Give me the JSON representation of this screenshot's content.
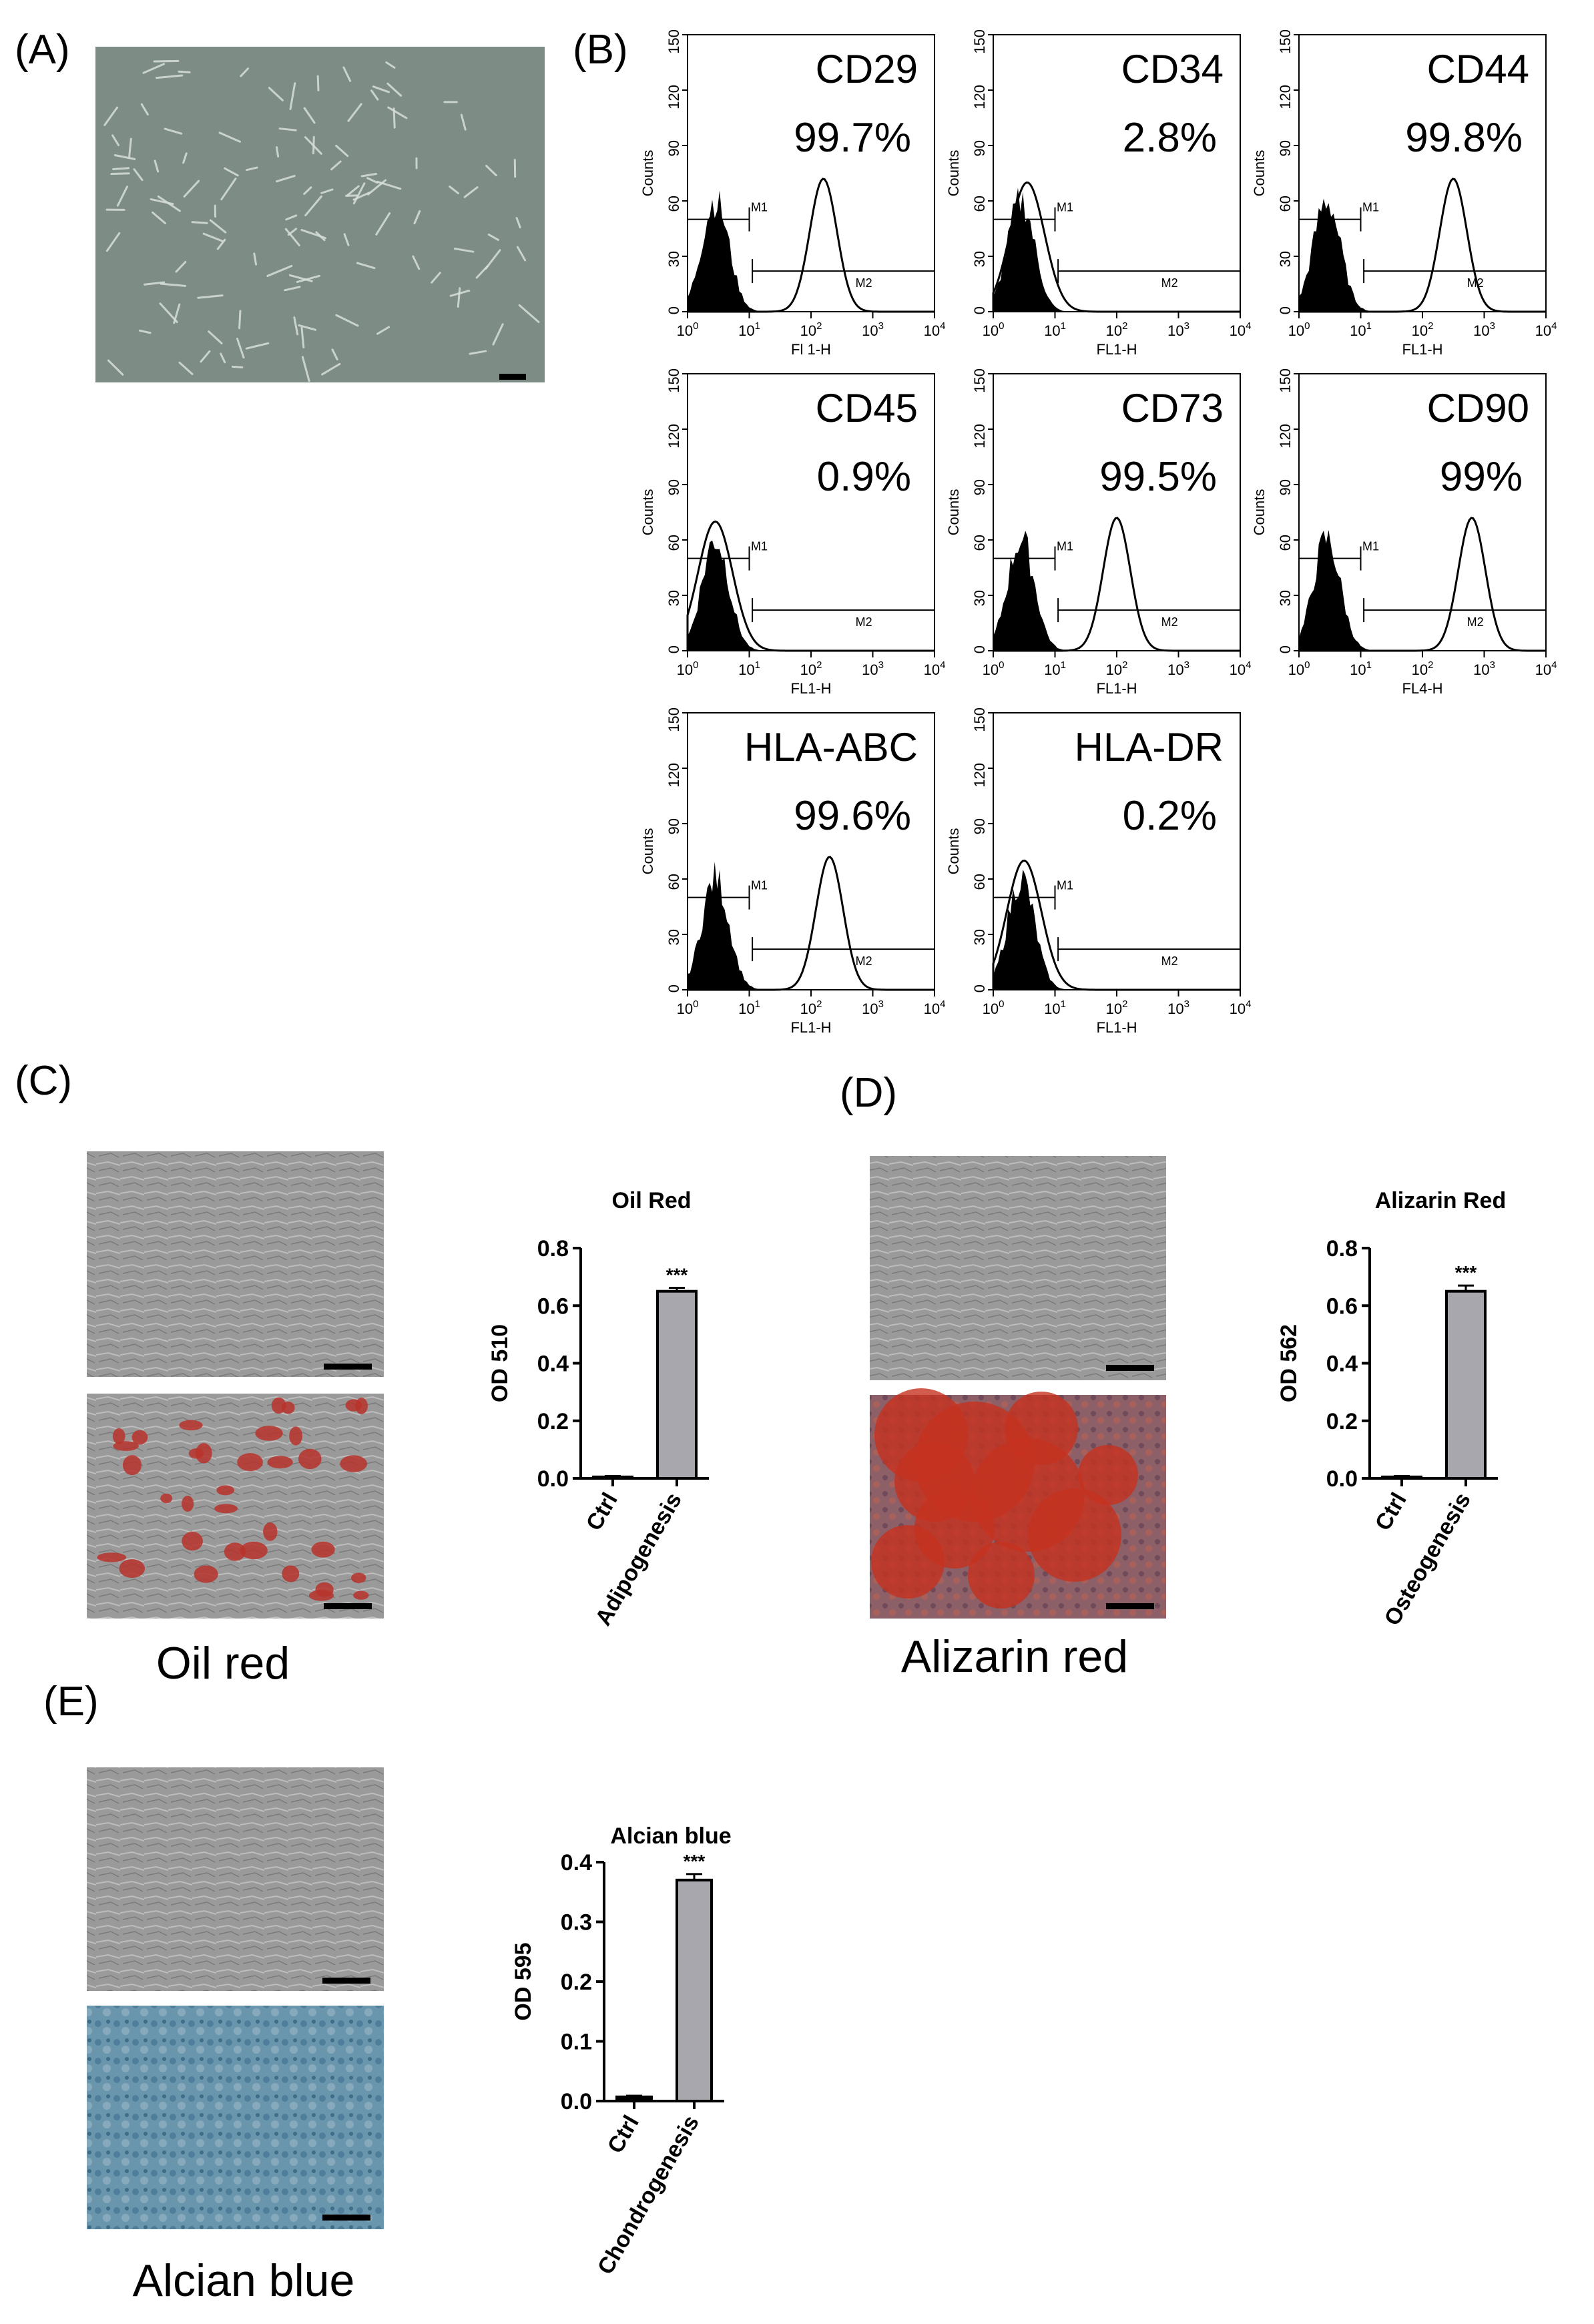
{
  "panels": {
    "A": "(A)",
    "B": "(B)",
    "C": "(C)",
    "D": "(D)",
    "E": "(E)"
  },
  "colors": {
    "bar": "#a7a7ad",
    "micro_gray": "#7d8c85",
    "gray_culture": "#9b9b9b",
    "oil_red_spot": "#b8322b",
    "alizarin_red": "#c5321f",
    "alizarin_base": "#8a5a5e",
    "alcian_blue": "#5f8fa8"
  },
  "flow": {
    "ylabel": "Counts",
    "yticks": [
      "0",
      "30",
      "60",
      "90",
      "120",
      "150"
    ],
    "gate1": "M1",
    "gate2": "M2",
    "histograms": [
      {
        "marker": "CD29",
        "percent": "99.7%",
        "xlabel": "Fl 1-H",
        "pos_mode": 2.2
      },
      {
        "marker": "CD34",
        "percent": "2.8%",
        "xlabel": "FL1-H",
        "pos_mode": 0.55
      },
      {
        "marker": "CD44",
        "percent": "99.8%",
        "xlabel": "FL1-H",
        "pos_mode": 2.5
      },
      {
        "marker": "CD45",
        "percent": "0.9%",
        "xlabel": "FL1-H",
        "pos_mode": 0.45
      },
      {
        "marker": "CD73",
        "percent": "99.5%",
        "xlabel": "FL1-H",
        "pos_mode": 2.0
      },
      {
        "marker": "CD90",
        "percent": "99%",
        "xlabel": "FL4-H",
        "pos_mode": 2.8
      },
      {
        "marker": "HLA-ABC",
        "percent": "99.6%",
        "xlabel": "FL1-H",
        "pos_mode": 2.3
      },
      {
        "marker": "HLA-DR",
        "percent": "0.2%",
        "xlabel": "FL1-H",
        "pos_mode": 0.5
      }
    ]
  },
  "captions": {
    "oil": "Oil red",
    "alizarin": "Alizarin red",
    "alcian": "Alcian blue"
  },
  "chart_data": [
    {
      "type": "bar",
      "title": "Oil Red",
      "ylabel": "OD 510",
      "categories": [
        "Ctrl",
        "Adipogenesis"
      ],
      "values": [
        0.005,
        0.65
      ],
      "errors": [
        0.003,
        0.012
      ],
      "ylim": [
        0,
        0.8
      ],
      "yticks": [
        "0.0",
        "0.2",
        "0.4",
        "0.6",
        "0.8"
      ],
      "annotation": "***"
    },
    {
      "type": "bar",
      "title": "Alizarin Red",
      "ylabel": "OD 562",
      "categories": [
        "Ctrl",
        "Osteogenesis"
      ],
      "values": [
        0.005,
        0.65
      ],
      "errors": [
        0.003,
        0.02
      ],
      "ylim": [
        0,
        0.8
      ],
      "yticks": [
        "0.0",
        "0.2",
        "0.4",
        "0.6",
        "0.8"
      ],
      "annotation": "***"
    },
    {
      "type": "bar",
      "title": "Alcian blue",
      "ylabel": "OD 595",
      "categories": [
        "Ctrl",
        "Chondrogenesis"
      ],
      "values": [
        0.007,
        0.37
      ],
      "errors": [
        0.002,
        0.01
      ],
      "ylim": [
        0,
        0.4
      ],
      "yticks": [
        "0.0",
        "0.1",
        "0.2",
        "0.3",
        "0.4"
      ],
      "annotation": "***"
    }
  ]
}
